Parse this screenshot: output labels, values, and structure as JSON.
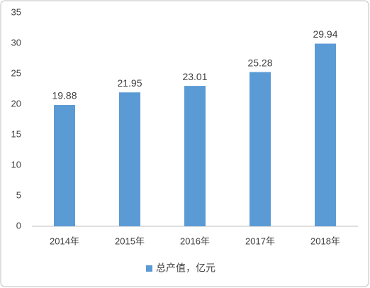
{
  "chart_data": {
    "type": "bar",
    "categories": [
      "2014年",
      "2015年",
      "2016年",
      "2017年",
      "2018年"
    ],
    "series": [
      {
        "name": "总产值，亿元",
        "color": "#5b9bd5",
        "values": [
          19.88,
          21.95,
          23.01,
          25.28,
          29.94
        ]
      }
    ],
    "ylim": [
      0,
      35
    ],
    "yticks": [
      0,
      5,
      10,
      15,
      20,
      25,
      30,
      35
    ],
    "grid": false,
    "legend": "bottom"
  }
}
